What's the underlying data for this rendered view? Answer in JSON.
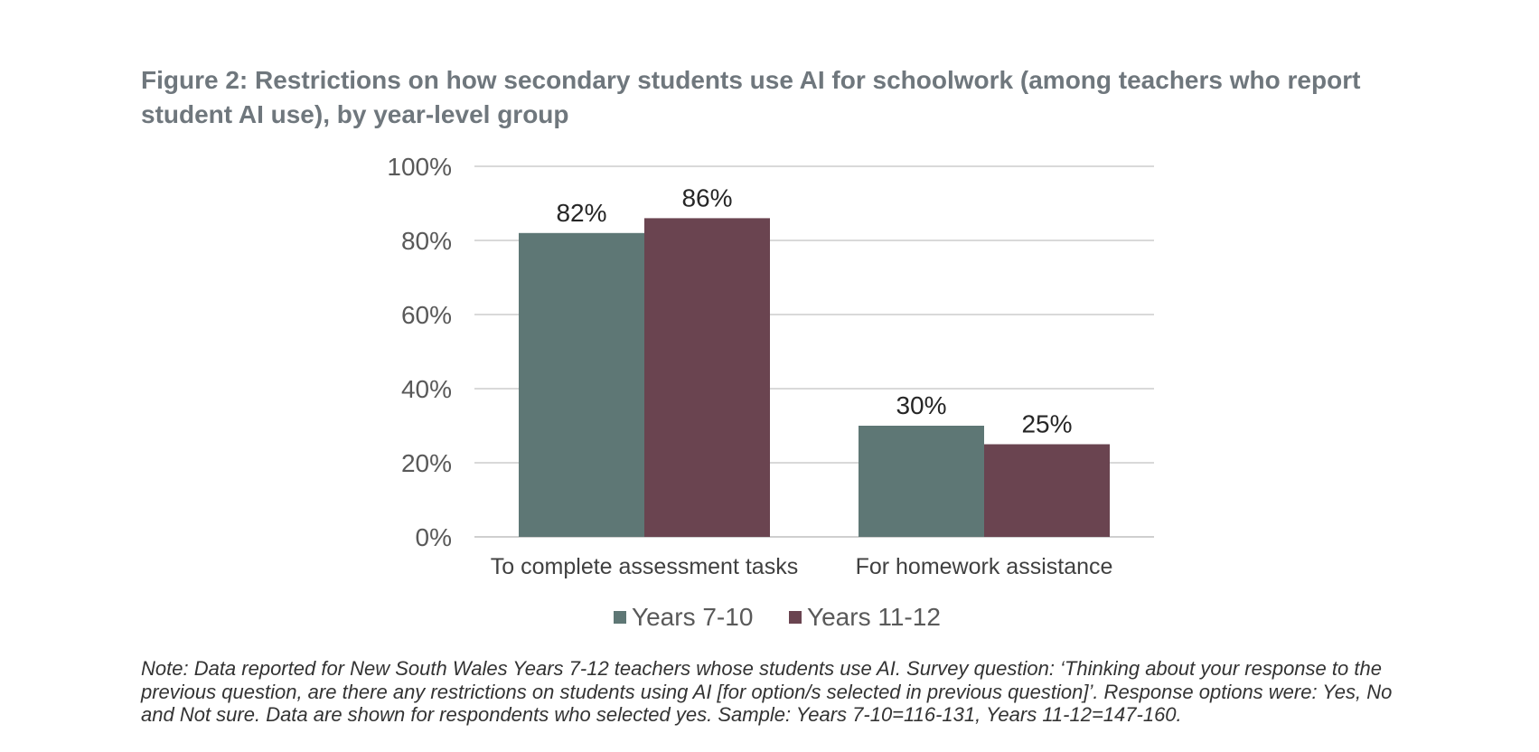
{
  "figure": {
    "title": "Figure 2: Restrictions on how secondary students use AI for schoolwork (among teachers who report student AI use), by year-level group",
    "note": "Note: Data reported for New South Wales Years 7-12 teachers whose students use AI. Survey question: ‘Thinking about your response to the previous question, are there any restrictions on students using AI [for option/s selected in previous question]’. Response options were: Yes, No and Not sure. Data are shown for respondents who selected yes.   Sample: Years 7-10=116-131, Years 11-12=147-160."
  },
  "chart_data": {
    "type": "bar",
    "title": "",
    "xlabel": "",
    "ylabel": "",
    "categories": [
      "To complete assessment tasks",
      "For homework assistance"
    ],
    "series": [
      {
        "name": "Years 7-10",
        "values": [
          82,
          30
        ],
        "color": "#5e7775"
      },
      {
        "name": "Years 11-12",
        "values": [
          86,
          25
        ],
        "color": "#6a4450"
      }
    ],
    "data_labels": [
      [
        "82%",
        "30%"
      ],
      [
        "86%",
        "25%"
      ]
    ],
    "ylim": [
      0,
      100
    ],
    "yticks": [
      0,
      20,
      40,
      60,
      80,
      100
    ],
    "ytick_labels": [
      "0%",
      "20%",
      "40%",
      "60%",
      "80%",
      "100%"
    ],
    "grid": true,
    "legend_position": "bottom"
  }
}
